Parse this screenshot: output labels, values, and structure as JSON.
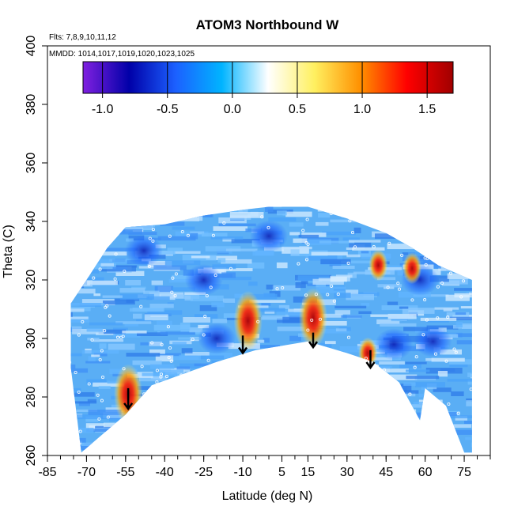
{
  "chart_data": {
    "type": "heatmap",
    "title": "ATOM3 Northbound W",
    "subtitle_flights": "Flts: 7,8,9,10,11,12",
    "subtitle_dates": "MMDD: 1014,1017,1019,1020,1023,1025",
    "xlabel": "Latitude (deg N)",
    "ylabel": "Theta (C)",
    "xlim": [
      -85,
      85
    ],
    "ylim": [
      260,
      400
    ],
    "x_ticks": [
      -85,
      -70,
      -55,
      -40,
      -25,
      -10,
      5,
      15,
      30,
      45,
      60,
      75
    ],
    "y_ticks": [
      260,
      280,
      300,
      320,
      340,
      360,
      380,
      400
    ],
    "colorbar": {
      "range": [
        -1.15,
        1.7
      ],
      "ticks": [
        -1.0,
        -0.5,
        0.0,
        0.5,
        1.0,
        1.5
      ],
      "tick_labels": [
        "-1.0",
        "-0.5",
        "0.0",
        "0.5",
        "1.0",
        "1.5"
      ],
      "colors": [
        "#8020e0",
        "#0000a8",
        "#1c60ff",
        "#00b4ff",
        "#ffffff",
        "#fff060",
        "#ff9000",
        "#ff0000",
        "#a00000"
      ]
    },
    "coverage_top": [
      [
        -76,
        312
      ],
      [
        -70,
        320
      ],
      [
        -62,
        331
      ],
      [
        -55,
        338
      ],
      [
        -40,
        339
      ],
      [
        -25,
        342
      ],
      [
        -10,
        344
      ],
      [
        0,
        345
      ],
      [
        15,
        345
      ],
      [
        30,
        341
      ],
      [
        45,
        336
      ],
      [
        55,
        331
      ],
      [
        65,
        325
      ],
      [
        78,
        320
      ]
    ],
    "coverage_bottom": [
      [
        -76,
        290
      ],
      [
        -72,
        261
      ],
      [
        -55,
        274
      ],
      [
        -45,
        284
      ],
      [
        -20,
        292
      ],
      [
        -5,
        296
      ],
      [
        15,
        299
      ],
      [
        30,
        295
      ],
      [
        40,
        292
      ],
      [
        50,
        285
      ],
      [
        58,
        272
      ],
      [
        60,
        283
      ],
      [
        68,
        277
      ],
      [
        75,
        261
      ],
      [
        78,
        261
      ]
    ],
    "hotspots": [
      {
        "lat": -8,
        "theta": 306,
        "w": 1.55
      },
      {
        "lat": 17,
        "theta": 307,
        "w": 1.3
      },
      {
        "lat": -54,
        "theta": 281,
        "w": 1.3
      },
      {
        "lat": 38,
        "theta": 295,
        "w": 0.9
      },
      {
        "lat": 55,
        "theta": 324,
        "w": 0.8
      },
      {
        "lat": 42,
        "theta": 325,
        "w": 0.7
      }
    ],
    "coldspots": [
      {
        "lat": 48,
        "theta": 298,
        "w": -0.8
      },
      {
        "lat": 63,
        "theta": 299,
        "w": -0.9
      },
      {
        "lat": 58,
        "theta": 320,
        "w": -0.9
      },
      {
        "lat": -48,
        "theta": 330,
        "w": -0.8
      },
      {
        "lat": -25,
        "theta": 320,
        "w": -0.7
      },
      {
        "lat": 0,
        "theta": 335,
        "w": -0.8
      },
      {
        "lat": -20,
        "theta": 300,
        "w": -0.6
      }
    ],
    "arrows": [
      {
        "lat": -54,
        "theta_from": 283,
        "theta_to": 276
      },
      {
        "lat": -10,
        "theta_from": 301,
        "theta_to": 295
      },
      {
        "lat": 17,
        "theta_from": 302,
        "theta_to": 297
      },
      {
        "lat": 39,
        "theta_from": 296,
        "theta_to": 290
      }
    ]
  }
}
